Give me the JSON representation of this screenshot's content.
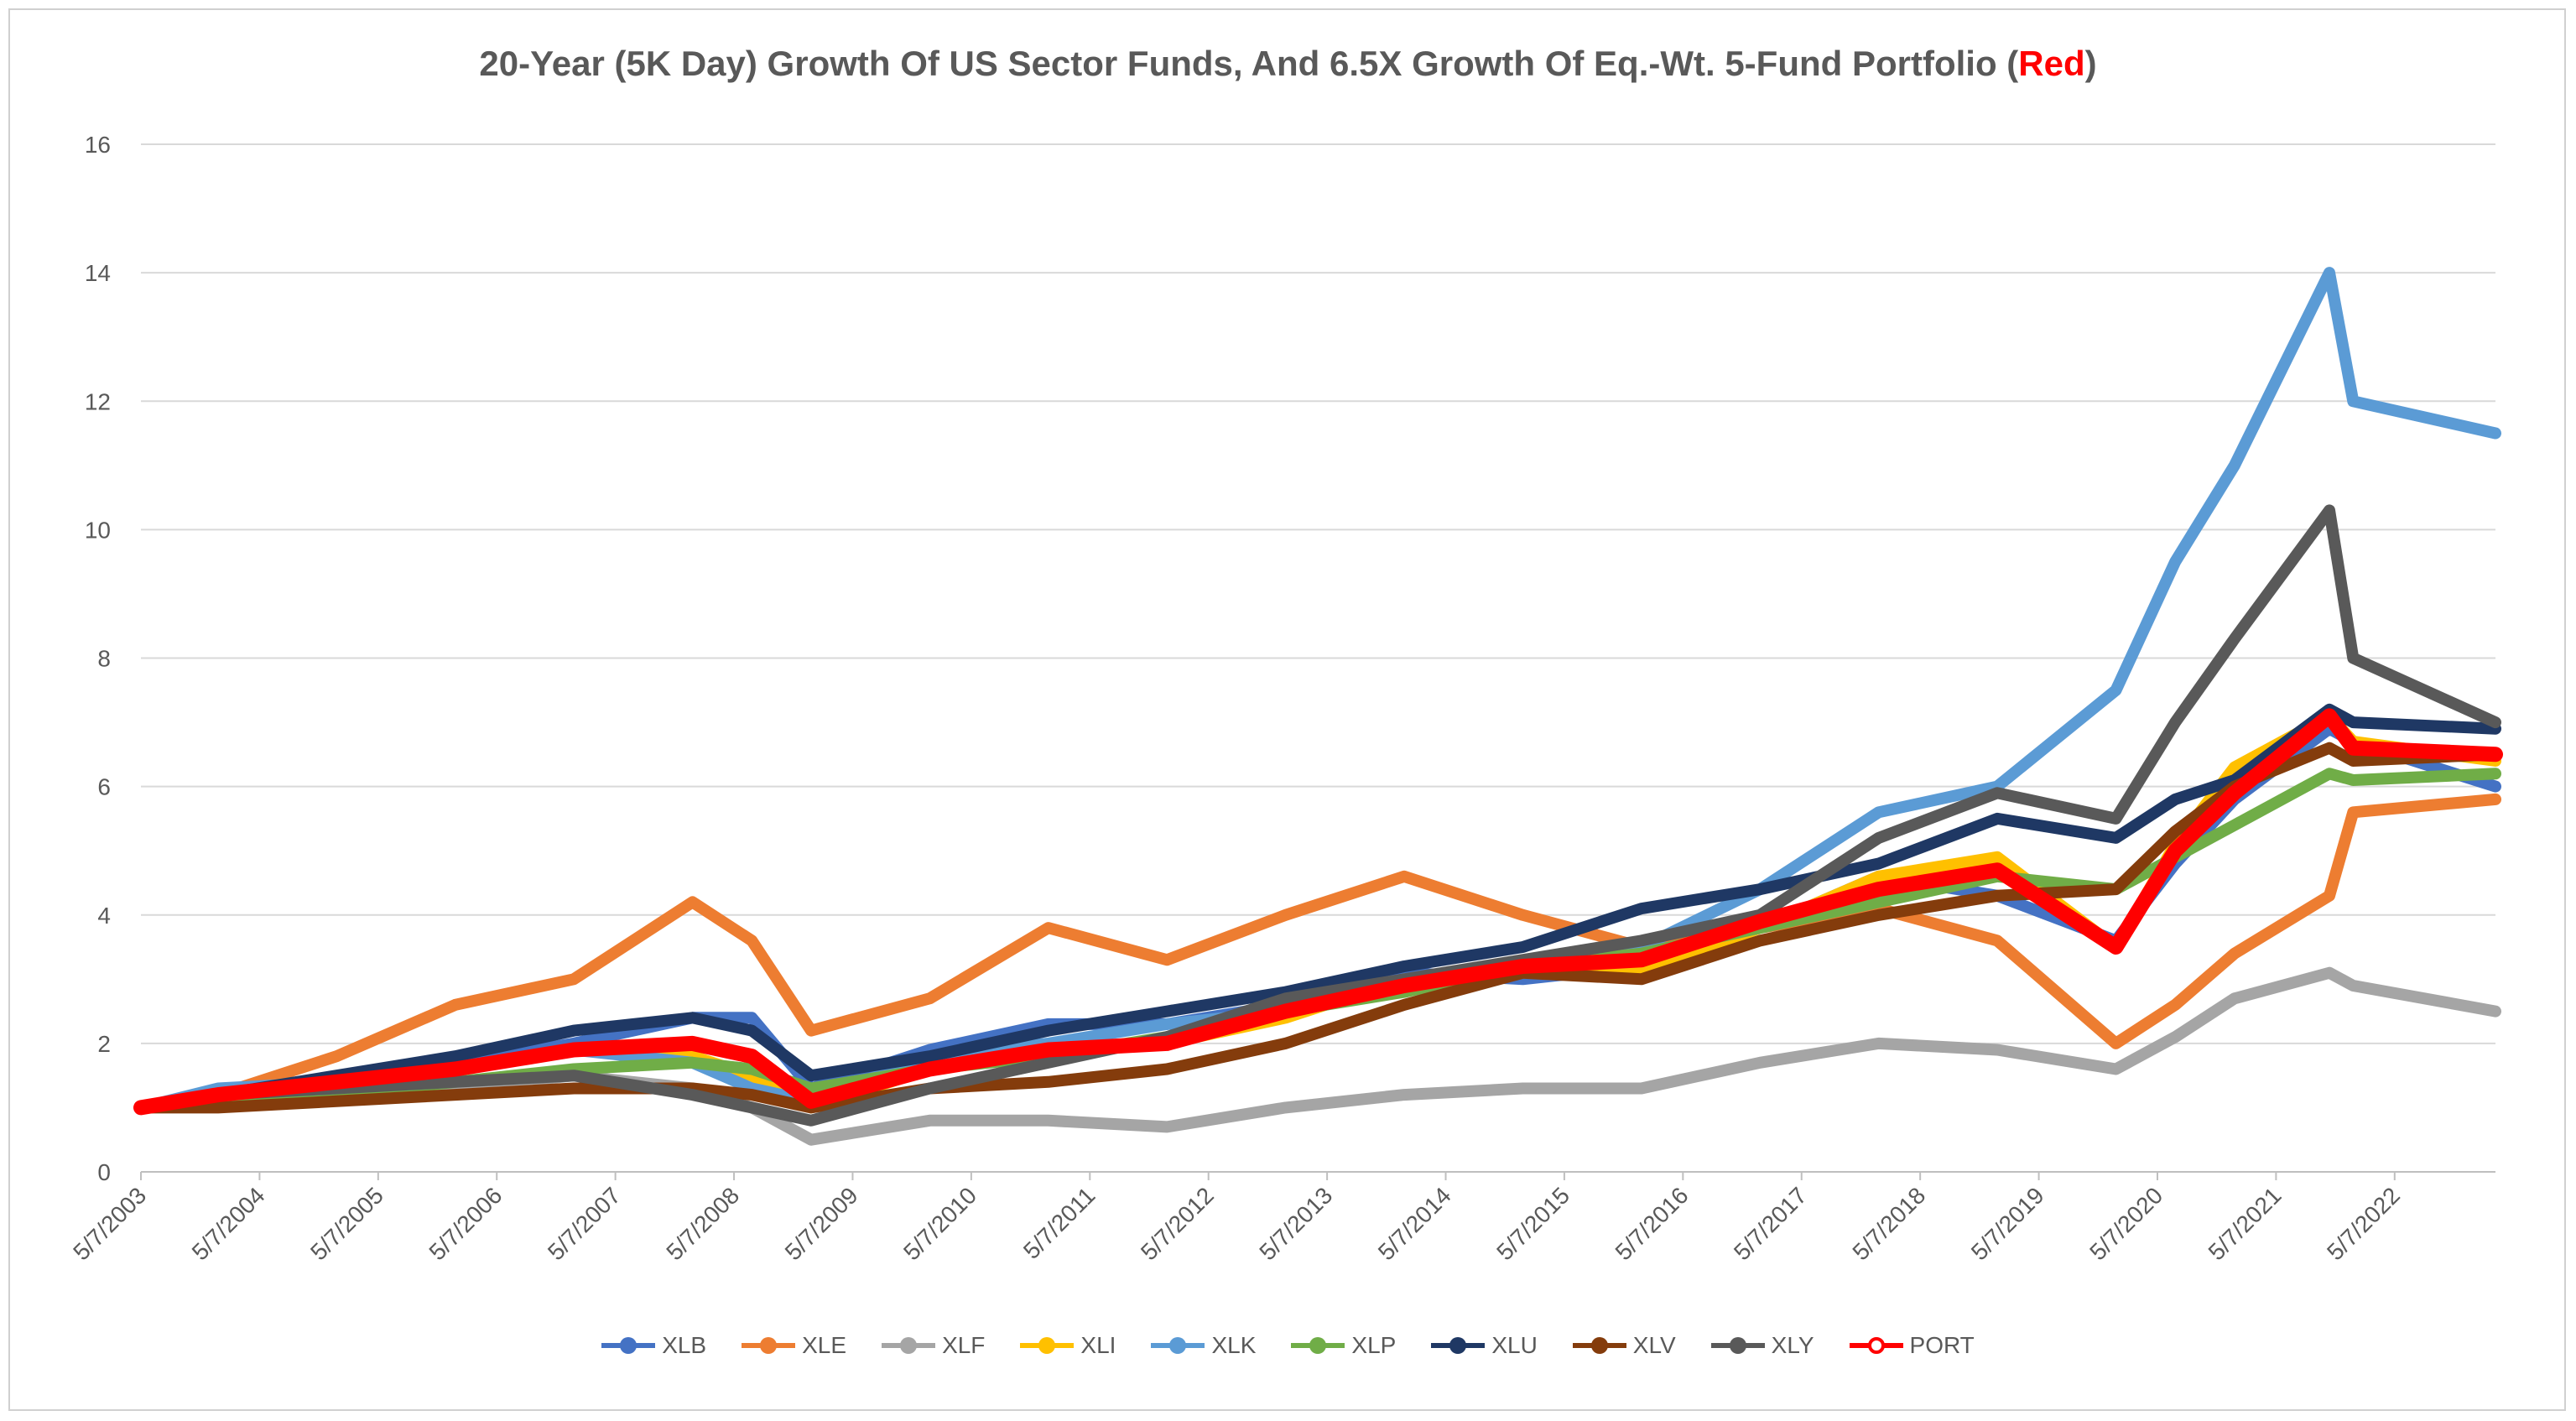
{
  "chart_data": {
    "type": "line",
    "title": "20-Year (5K Day) Growth Of US Sector Funds, And 6.5X Growth Of Eq.-Wt. 5-Fund Portfolio (",
    "title_red": "Red",
    "title_end": ")",
    "xlabel": "",
    "ylabel": "",
    "ylim": [
      0,
      16
    ],
    "yticks": [
      0,
      2,
      4,
      6,
      8,
      10,
      12,
      14,
      16
    ],
    "x": [
      2003.35,
      2004,
      2005,
      2006,
      2007,
      2008,
      2008.5,
      2009,
      2010,
      2011,
      2012,
      2013,
      2014,
      2015,
      2016,
      2017,
      2018,
      2019,
      2020,
      2020.5,
      2021,
      2021.8,
      2022,
      2023.2
    ],
    "xticks": [
      {
        "label": "5/7/2003",
        "x": 2003.35
      },
      {
        "label": "5/7/2004",
        "x": 2004.35
      },
      {
        "label": "5/7/2005",
        "x": 2005.35
      },
      {
        "label": "5/7/2006",
        "x": 2006.35
      },
      {
        "label": "5/7/2007",
        "x": 2007.35
      },
      {
        "label": "5/7/2008",
        "x": 2008.35
      },
      {
        "label": "5/7/2009",
        "x": 2009.35
      },
      {
        "label": "5/7/2010",
        "x": 2010.35
      },
      {
        "label": "5/7/2011",
        "x": 2011.35
      },
      {
        "label": "5/7/2012",
        "x": 2012.35
      },
      {
        "label": "5/7/2013",
        "x": 2013.35
      },
      {
        "label": "5/7/2014",
        "x": 2014.35
      },
      {
        "label": "5/7/2015",
        "x": 2015.35
      },
      {
        "label": "5/7/2016",
        "x": 2016.35
      },
      {
        "label": "5/7/2017",
        "x": 2017.35
      },
      {
        "label": "5/7/2018",
        "x": 2018.35
      },
      {
        "label": "5/7/2019",
        "x": 2019.35
      },
      {
        "label": "5/7/2020",
        "x": 2020.35
      },
      {
        "label": "5/7/2021",
        "x": 2021.35
      },
      {
        "label": "5/7/2022",
        "x": 2022.35
      }
    ],
    "xlim": [
      2003.35,
      2023.2
    ],
    "series": [
      {
        "name": "XLB",
        "color": "#4472c4",
        "values": [
          1.0,
          1.2,
          1.4,
          1.7,
          2.0,
          2.4,
          2.4,
          1.3,
          1.9,
          2.3,
          2.3,
          2.6,
          3.1,
          3.0,
          3.2,
          3.8,
          4.6,
          4.3,
          3.6,
          4.8,
          5.8,
          6.9,
          6.7,
          6.0
        ]
      },
      {
        "name": "XLE",
        "color": "#ed7d31",
        "values": [
          1.0,
          1.2,
          1.8,
          2.6,
          3.0,
          4.2,
          3.6,
          2.2,
          2.7,
          3.8,
          3.3,
          4.0,
          4.6,
          4.0,
          3.5,
          3.8,
          4.1,
          3.6,
          2.0,
          2.6,
          3.4,
          4.3,
          5.6,
          5.8
        ]
      },
      {
        "name": "XLF",
        "color": "#a5a5a5",
        "values": [
          1.0,
          1.1,
          1.2,
          1.3,
          1.5,
          1.3,
          1.0,
          0.5,
          0.8,
          0.8,
          0.7,
          1.0,
          1.2,
          1.3,
          1.3,
          1.7,
          2.0,
          1.9,
          1.6,
          2.1,
          2.7,
          3.1,
          2.9,
          2.5
        ]
      },
      {
        "name": "XLI",
        "color": "#ffc000",
        "values": [
          1.0,
          1.2,
          1.4,
          1.6,
          1.9,
          1.8,
          1.5,
          1.0,
          1.6,
          1.9,
          2.0,
          2.4,
          3.0,
          3.1,
          3.1,
          3.8,
          4.6,
          4.9,
          3.5,
          5.1,
          6.3,
          7.1,
          6.7,
          6.4
        ]
      },
      {
        "name": "XLK",
        "color": "#5b9bd5",
        "values": [
          1.0,
          1.3,
          1.4,
          1.6,
          1.9,
          1.7,
          1.3,
          1.1,
          1.8,
          2.0,
          2.3,
          2.5,
          3.0,
          3.2,
          3.5,
          4.4,
          5.6,
          6.0,
          7.5,
          9.5,
          11.0,
          14.0,
          12.0,
          11.5
        ]
      },
      {
        "name": "XLP",
        "color": "#70ad47",
        "values": [
          1.0,
          1.1,
          1.2,
          1.4,
          1.6,
          1.7,
          1.6,
          1.3,
          1.6,
          1.8,
          2.1,
          2.5,
          2.8,
          3.2,
          3.4,
          3.8,
          4.2,
          4.6,
          4.4,
          4.9,
          5.4,
          6.2,
          6.1,
          6.2
        ]
      },
      {
        "name": "XLU",
        "color": "#1f3864",
        "values": [
          1.0,
          1.2,
          1.5,
          1.8,
          2.2,
          2.4,
          2.2,
          1.5,
          1.8,
          2.2,
          2.5,
          2.8,
          3.2,
          3.5,
          4.1,
          4.4,
          4.8,
          5.5,
          5.2,
          5.8,
          6.1,
          7.2,
          7.0,
          6.9
        ]
      },
      {
        "name": "XLV",
        "color": "#843c0c",
        "values": [
          1.0,
          1.0,
          1.1,
          1.2,
          1.3,
          1.3,
          1.2,
          1.0,
          1.3,
          1.4,
          1.6,
          2.0,
          2.6,
          3.1,
          3.0,
          3.6,
          4.0,
          4.3,
          4.4,
          5.3,
          6.0,
          6.6,
          6.4,
          6.5
        ]
      },
      {
        "name": "XLY",
        "color": "#595959",
        "values": [
          1.0,
          1.2,
          1.3,
          1.4,
          1.5,
          1.2,
          1.0,
          0.8,
          1.3,
          1.7,
          2.1,
          2.7,
          3.0,
          3.3,
          3.6,
          4.0,
          5.2,
          5.9,
          5.5,
          7.0,
          8.3,
          10.3,
          8.0,
          7.0
        ]
      },
      {
        "name": "PORT",
        "color": "#ff0000",
        "values": [
          1.0,
          1.2,
          1.4,
          1.6,
          1.9,
          2.0,
          1.8,
          1.1,
          1.6,
          1.9,
          2.0,
          2.5,
          2.9,
          3.2,
          3.3,
          3.9,
          4.4,
          4.7,
          3.5,
          5.0,
          5.9,
          7.1,
          6.6,
          6.5
        ]
      }
    ],
    "legend_position": "bottom"
  }
}
